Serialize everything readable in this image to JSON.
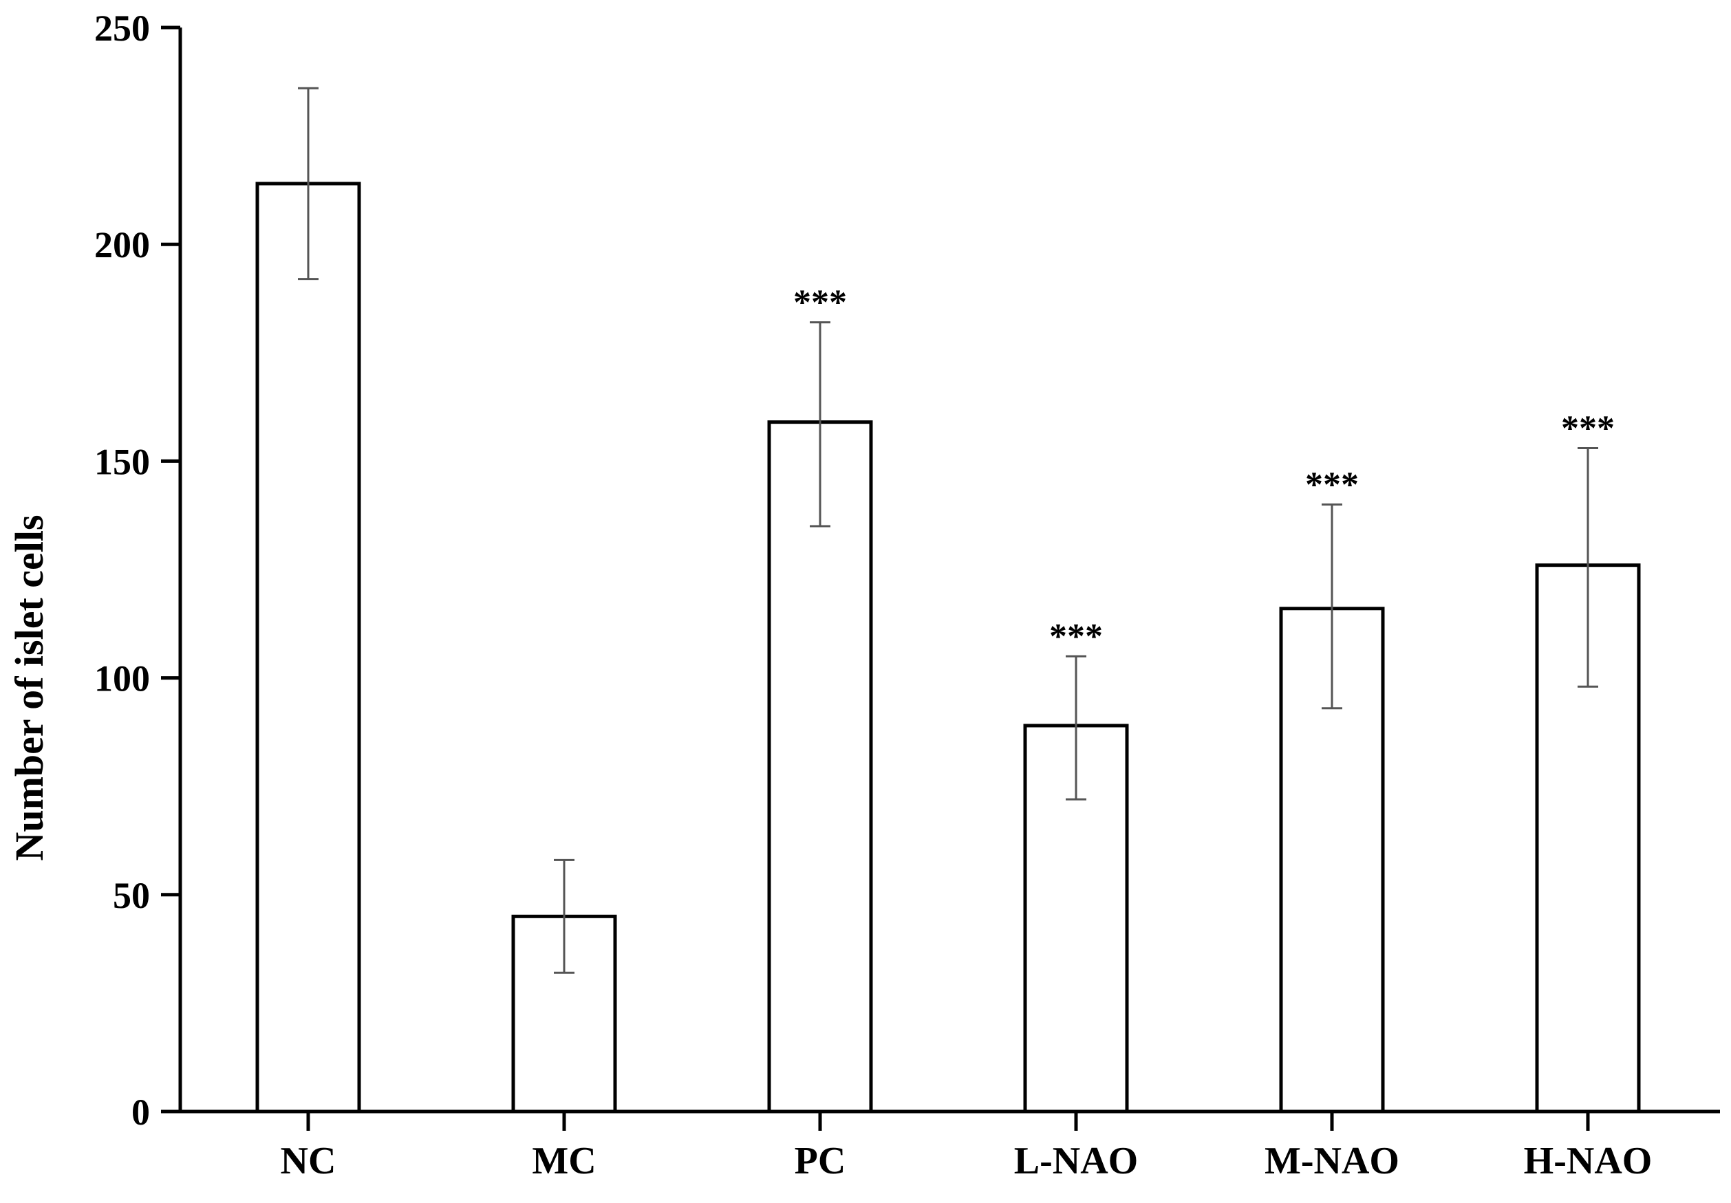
{
  "chart_data": {
    "type": "bar",
    "title": "",
    "xlabel": "",
    "ylabel": "Number of islet cells",
    "ylim": [
      0,
      250
    ],
    "yticks": [
      0,
      50,
      100,
      150,
      200,
      250
    ],
    "categories": [
      "NC",
      "MC",
      "PC",
      "L-NAO",
      "M-NAO",
      "H-NAO"
    ],
    "series": [
      {
        "values": [
          214,
          45,
          159,
          89,
          116,
          126
        ],
        "error_low": [
          192,
          32,
          135,
          72,
          93,
          98
        ],
        "error_high": [
          236,
          58,
          182,
          105,
          140,
          153
        ],
        "annotations": [
          "",
          "",
          "***",
          "***",
          "***",
          "***"
        ]
      }
    ],
    "grid": false,
    "legend": "none",
    "colors": {
      "bar_fill": "#ffffff",
      "bar_stroke": "#000000",
      "error_bar": "#555555",
      "axis": "#000000"
    }
  }
}
